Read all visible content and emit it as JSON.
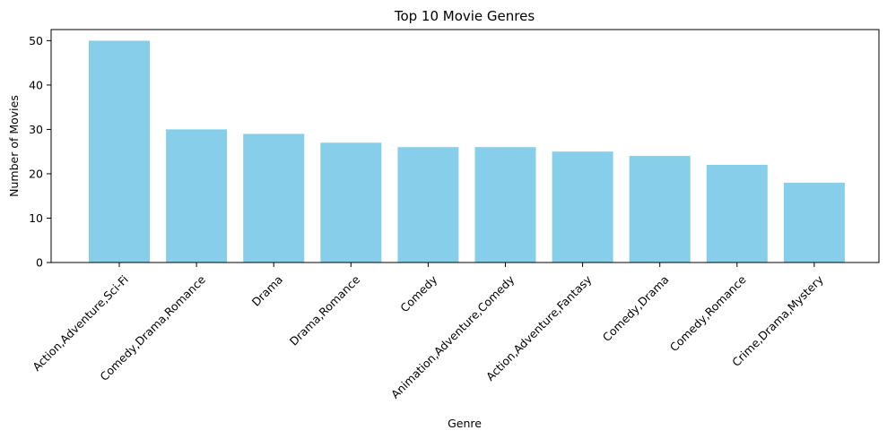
{
  "chart_data": {
    "type": "bar",
    "title": "Top 10 Movie Genres",
    "xlabel": "Genre",
    "ylabel": "Number of Movies",
    "categories": [
      "Action,Adventure,Sci-Fi",
      "Comedy,Drama,Romance",
      "Drama",
      "Drama,Romance",
      "Comedy",
      "Animation,Adventure,Comedy",
      "Action,Adventure,Fantasy",
      "Comedy,Drama",
      "Comedy,Romance",
      "Crime,Drama,Mystery"
    ],
    "values": [
      50,
      30,
      29,
      27,
      26,
      26,
      25,
      24,
      22,
      18
    ],
    "ylim": [
      0,
      52.5
    ],
    "yticks": [
      0,
      10,
      20,
      30,
      40,
      50
    ],
    "bar_color": "#87CEEB",
    "grid": false,
    "x_tick_rotation": 45
  }
}
